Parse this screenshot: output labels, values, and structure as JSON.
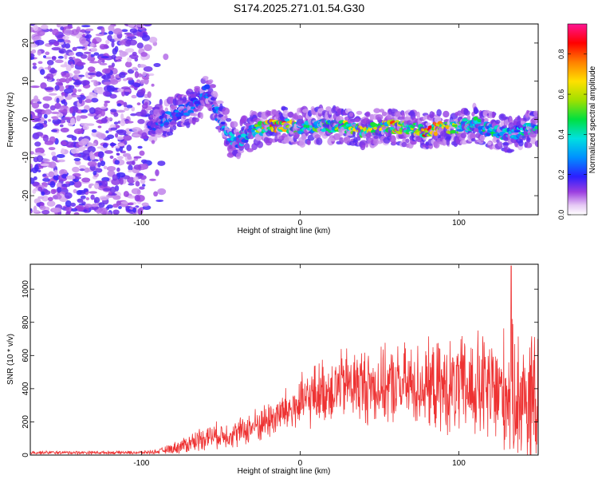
{
  "title": "S174.2025.271.01.54.G30",
  "chart_data": [
    {
      "type": "heatmap",
      "name": "spectrogram",
      "xlabel": "Height of straight line (km)",
      "ylabel": "Frequency (Hz)",
      "xlim": [
        -170,
        150
      ],
      "ylim": [
        -25,
        25
      ],
      "xticks": [
        -100,
        0,
        100
      ],
      "yticks": [
        -20,
        -10,
        0,
        10,
        20
      ],
      "colorbar": {
        "label": "Normalized spectral amplitude",
        "range": [
          0.0,
          0.95
        ],
        "ticks": [
          0.0,
          0.2,
          0.4,
          0.6,
          0.8
        ],
        "tick_labels": [
          "0.0",
          "0.2",
          "0.4",
          "0.6",
          "0.8"
        ]
      },
      "noise_region_x": [
        -170,
        -95
      ],
      "signal_track": {
        "x": [
          -95,
          -85,
          -75,
          -65,
          -58,
          -50,
          -45,
          -40,
          -30,
          -20,
          -10,
          0,
          10,
          20,
          30,
          40,
          50,
          60,
          70,
          80,
          90,
          100,
          110,
          120,
          130,
          140,
          150
        ],
        "freq": [
          -2,
          0,
          2,
          4,
          8,
          0,
          -4,
          -6,
          -3,
          -2,
          -1.5,
          -2,
          -1.5,
          -1.5,
          -2,
          -3,
          -2,
          -2,
          -2.5,
          -3,
          -2,
          -2,
          -1,
          -3,
          -4,
          -3,
          -2
        ],
        "peak": [
          0.2,
          0.3,
          0.3,
          0.3,
          0.3,
          0.35,
          0.4,
          0.4,
          0.45,
          0.9,
          0.9,
          0.5,
          0.55,
          0.6,
          0.7,
          0.7,
          0.65,
          0.85,
          0.7,
          0.9,
          0.8,
          0.6,
          0.5,
          0.5,
          0.45,
          0.45,
          0.45
        ]
      }
    },
    {
      "type": "line",
      "name": "snr",
      "xlabel": "Height of straight line (km)",
      "ylabel": "SNR (10 * v/v)",
      "xlim": [
        -170,
        150
      ],
      "ylim": [
        0,
        1150
      ],
      "xticks": [
        -100,
        0,
        100
      ],
      "yticks": [
        0,
        200,
        400,
        600,
        800,
        1000
      ],
      "color": "#ee3333",
      "envelope": {
        "x": [
          -170,
          -100,
          -90,
          -80,
          -70,
          -60,
          -50,
          -40,
          -30,
          -20,
          -10,
          0,
          10,
          20,
          30,
          40,
          50,
          60,
          70,
          80,
          90,
          100,
          110,
          120,
          130,
          140,
          150
        ],
        "mean": [
          15,
          15,
          20,
          40,
          70,
          110,
          120,
          130,
          170,
          210,
          260,
          300,
          370,
          400,
          430,
          420,
          410,
          420,
          420,
          420,
          400,
          400,
          410,
          380,
          380,
          360,
          330
        ],
        "amp": [
          12,
          12,
          15,
          40,
          70,
          90,
          90,
          100,
          120,
          140,
          160,
          200,
          220,
          240,
          260,
          280,
          260,
          280,
          300,
          300,
          330,
          350,
          400,
          420,
          450,
          500,
          450
        ]
      },
      "peak_value": 1140,
      "peak_x": 133
    }
  ]
}
